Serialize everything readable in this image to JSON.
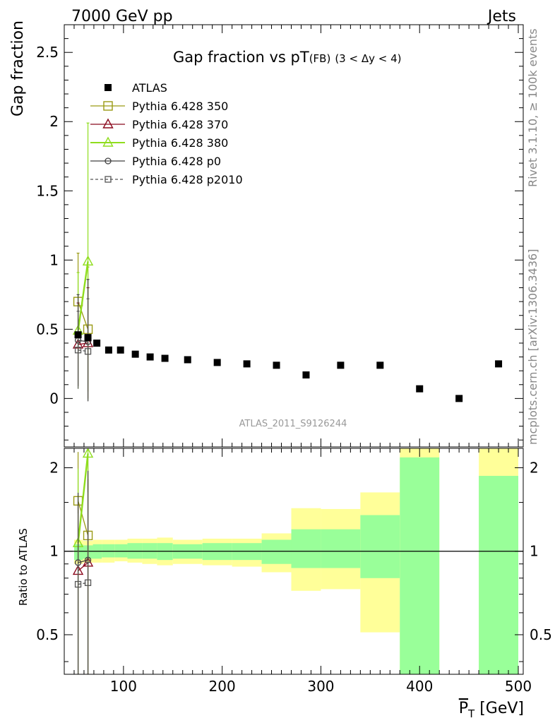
{
  "header": {
    "left": "7000 GeV pp",
    "right": "Jets"
  },
  "side_text": {
    "rivet": "Rivet 3.1.10, ≥ 100k events",
    "mcplots": "mcplots.cern.ch [arXiv:1306.3436]"
  },
  "chart_data": {
    "type": "scatter",
    "title": "Gap fraction vs pT",
    "title_suffix": "(FB)",
    "title_range": "(3 < Δy < 4)",
    "analysis_label": "ATLAS_2011_S9126244",
    "ylabel": "Gap fraction",
    "ratio_ylabel": "Ratio to ATLAS",
    "xlabel": "P_T [GeV]",
    "xlabel_main": "P",
    "xlabel_sub": "T",
    "xlabel_unit": " [GeV]",
    "xlim": [
      40,
      505
    ],
    "ylim": [
      -0.35,
      2.7
    ],
    "ratio_ylim": [
      0.36,
      2.35
    ],
    "ratio_log": true,
    "x_ticks": [
      100,
      200,
      300,
      400,
      500
    ],
    "x_tick_labels": [
      "100",
      "200",
      "300",
      "400",
      "500"
    ],
    "y_ticks": [
      0,
      0.5,
      1,
      1.5,
      2,
      2.5
    ],
    "y_tick_labels": [
      "0",
      "0.5",
      "1",
      "1.5",
      "2",
      "2.5"
    ],
    "ratio_ticks": [
      0.5,
      1,
      2
    ],
    "ratio_tick_labels": [
      "0.5",
      "1",
      "2"
    ],
    "data": {
      "name": "ATLAS",
      "x": [
        54,
        64,
        73,
        85,
        97,
        112,
        127,
        142,
        165,
        195,
        225,
        255,
        285,
        320,
        360,
        400,
        440,
        480
      ],
      "y": [
        0.46,
        0.44,
        0.4,
        0.35,
        0.35,
        0.32,
        0.3,
        0.29,
        0.28,
        0.26,
        0.25,
        0.24,
        0.17,
        0.24,
        0.24,
        0.07,
        0.0,
        0.25
      ]
    },
    "bands": {
      "edges": [
        50,
        59,
        69,
        78,
        91,
        104,
        119,
        134,
        150,
        180,
        210,
        240,
        270,
        300,
        340,
        380,
        420,
        460,
        500
      ],
      "green_lo": [
        0.93,
        0.94,
        0.94,
        0.95,
        0.95,
        0.94,
        0.94,
        0.93,
        0.94,
        0.93,
        0.93,
        0.9,
        0.87,
        0.87,
        0.8,
        0.36,
        null,
        0.36
      ],
      "green_hi": [
        1.06,
        1.05,
        1.06,
        1.06,
        1.06,
        1.07,
        1.07,
        1.07,
        1.06,
        1.07,
        1.07,
        1.1,
        1.2,
        1.2,
        1.35,
        2.18,
        null,
        1.87
      ],
      "yellow_lo": [
        0.9,
        0.91,
        0.91,
        0.91,
        0.92,
        0.91,
        0.9,
        0.89,
        0.9,
        0.89,
        0.88,
        0.84,
        0.72,
        0.73,
        0.51,
        0.36,
        null,
        0.36
      ],
      "yellow_hi": [
        1.1,
        1.09,
        1.1,
        1.1,
        1.1,
        1.11,
        1.11,
        1.12,
        1.1,
        1.11,
        1.11,
        1.16,
        1.43,
        1.42,
        1.63,
        2.35,
        null,
        2.35
      ]
    },
    "series": [
      {
        "name": "Pythia 6.428 350",
        "color": "#9a9a14",
        "marker": "square-open",
        "dash": false,
        "x": [
          54,
          64
        ],
        "y": [
          0.7,
          0.5
        ],
        "err": [
          0.35,
          0.45
        ],
        "ratio": [
          1.52,
          1.14
        ]
      },
      {
        "name": "Pythia 6.428 370",
        "color": "#8b0a1e",
        "marker": "triangle-open",
        "dash": false,
        "x": [
          54,
          64
        ],
        "y": [
          0.39,
          0.4
        ],
        "err": [
          0.3,
          0.4
        ],
        "ratio": [
          0.85,
          0.91
        ]
      },
      {
        "name": "Pythia 6.428 380",
        "color": "#8fdd1d",
        "marker": "triangle-open",
        "dash": false,
        "x": [
          54,
          64
        ],
        "y": [
          0.49,
          0.99
        ],
        "err": [
          0.42,
          1.0
        ],
        "ratio": [
          1.07,
          2.25
        ]
      },
      {
        "name": "Pythia 6.428 p0",
        "color": "#404040",
        "marker": "circle-open",
        "dash": false,
        "x": [
          54,
          64
        ],
        "y": [
          0.42,
          0.41
        ],
        "err": [
          0.33,
          0.45
        ],
        "ratio": [
          0.91,
          0.93
        ]
      },
      {
        "name": "Pythia 6.428 p2010",
        "color": "#555555",
        "marker": "square-small-open",
        "dash": true,
        "x": [
          54,
          64
        ],
        "y": [
          0.35,
          0.34
        ],
        "err": [
          0.28,
          0.38
        ],
        "ratio": [
          0.76,
          0.77
        ]
      }
    ],
    "legend_position": "top-left"
  }
}
